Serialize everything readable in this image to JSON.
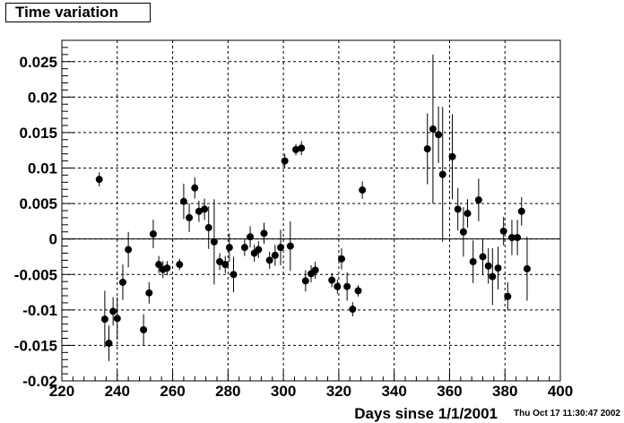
{
  "chart_data": {
    "type": "scatter",
    "title": "Time variation",
    "xlabel": "Days sinse 1/1/2001",
    "ylabel": "",
    "xlim": [
      220,
      400
    ],
    "ylim": [
      -0.02,
      0.028
    ],
    "xticks": [
      220,
      240,
      260,
      280,
      300,
      320,
      340,
      360,
      380,
      400
    ],
    "xtick_labels": [
      "220",
      "240",
      "260",
      "280",
      "300",
      "320",
      "340",
      "360",
      "380",
      "400"
    ],
    "yticks": [
      -0.02,
      -0.015,
      -0.01,
      -0.005,
      0,
      0.005,
      0.01,
      0.015,
      0.02,
      0.025
    ],
    "ytick_labels": [
      "-0.02",
      "-0.015",
      "-0.01",
      "-0.005",
      "0",
      "0.005",
      "0.01",
      "0.015",
      "0.02",
      "0.025"
    ],
    "grid": true,
    "reference_line_y": 0,
    "series": [
      {
        "points": [
          {
            "x": 233.5,
            "y": 0.0084,
            "err": 0.001
          },
          {
            "x": 235.5,
            "y": -0.0113,
            "err": 0.004
          },
          {
            "x": 237,
            "y": -0.0147,
            "err": 0.0025
          },
          {
            "x": 238.5,
            "y": -0.0102,
            "err": 0.002
          },
          {
            "x": 240,
            "y": -0.0112,
            "err": 0.003
          },
          {
            "x": 242,
            "y": -0.0061,
            "err": 0.0025
          },
          {
            "x": 244,
            "y": -0.0015,
            "err": 0.0025
          },
          {
            "x": 249.5,
            "y": -0.0128,
            "err": 0.0022
          },
          {
            "x": 251.5,
            "y": -0.0076,
            "err": 0.0015
          },
          {
            "x": 253,
            "y": 0.0007,
            "err": 0.002
          },
          {
            "x": 255,
            "y": -0.0036,
            "err": 0.0012
          },
          {
            "x": 256.5,
            "y": -0.0043,
            "err": 0.0012
          },
          {
            "x": 258,
            "y": -0.0041,
            "err": 0.001
          },
          {
            "x": 262.5,
            "y": -0.0036,
            "err": 0.0008
          },
          {
            "x": 264,
            "y": 0.0053,
            "err": 0.0025
          },
          {
            "x": 266,
            "y": 0.003,
            "err": 0.002
          },
          {
            "x": 268,
            "y": 0.0072,
            "err": 0.0015
          },
          {
            "x": 269.5,
            "y": 0.0039,
            "err": 0.0015
          },
          {
            "x": 271.5,
            "y": 0.0042,
            "err": 0.0015
          },
          {
            "x": 273,
            "y": 0.0016,
            "err": 0.003
          },
          {
            "x": 275,
            "y": -0.0004,
            "err": 0.006
          },
          {
            "x": 277,
            "y": -0.0032,
            "err": 0.0012
          },
          {
            "x": 279,
            "y": -0.0036,
            "err": 0.0012
          },
          {
            "x": 280.5,
            "y": -0.0012,
            "err": 0.002
          },
          {
            "x": 282,
            "y": -0.005,
            "err": 0.0025
          },
          {
            "x": 286,
            "y": -0.0012,
            "err": 0.0012
          },
          {
            "x": 288,
            "y": 0.0003,
            "err": 0.0015
          },
          {
            "x": 289.5,
            "y": -0.002,
            "err": 0.0012
          },
          {
            "x": 291,
            "y": -0.0015,
            "err": 0.0012
          },
          {
            "x": 293,
            "y": 0.0008,
            "err": 0.0015
          },
          {
            "x": 295,
            "y": -0.003,
            "err": 0.0012
          },
          {
            "x": 297,
            "y": -0.0023,
            "err": 0.0015
          },
          {
            "x": 299,
            "y": -0.0012,
            "err": 0.0025
          },
          {
            "x": 300.5,
            "y": 0.011,
            "err": 0.001
          },
          {
            "x": 302.5,
            "y": -0.001,
            "err": 0.0035
          },
          {
            "x": 304.5,
            "y": 0.0126,
            "err": 0.0008
          },
          {
            "x": 306.5,
            "y": 0.0128,
            "err": 0.001
          },
          {
            "x": 308,
            "y": -0.0059,
            "err": 0.0015
          },
          {
            "x": 310,
            "y": -0.0049,
            "err": 0.0012
          },
          {
            "x": 311.5,
            "y": -0.0044,
            "err": 0.0012
          },
          {
            "x": 317.5,
            "y": -0.0058,
            "err": 0.001
          },
          {
            "x": 319.5,
            "y": -0.0067,
            "err": 0.001
          },
          {
            "x": 321,
            "y": -0.0028,
            "err": 0.0015
          },
          {
            "x": 323,
            "y": -0.0067,
            "err": 0.002
          },
          {
            "x": 325,
            "y": -0.0099,
            "err": 0.001
          },
          {
            "x": 327,
            "y": -0.0073,
            "err": 0.0008
          },
          {
            "x": 328.5,
            "y": 0.0069,
            "err": 0.0012
          },
          {
            "x": 352,
            "y": 0.0127,
            "err": 0.005
          },
          {
            "x": 354,
            "y": 0.0155,
            "err": 0.0105
          },
          {
            "x": 356,
            "y": 0.0147,
            "err": 0.004
          },
          {
            "x": 357.5,
            "y": 0.0091,
            "err": 0.0095
          },
          {
            "x": 361,
            "y": 0.0116,
            "err": 0.006
          },
          {
            "x": 363,
            "y": 0.0042,
            "err": 0.003
          },
          {
            "x": 365,
            "y": 0.001,
            "err": 0.0035
          },
          {
            "x": 366.5,
            "y": 0.0036,
            "err": 0.002
          },
          {
            "x": 368.5,
            "y": -0.0032,
            "err": 0.003
          },
          {
            "x": 370.5,
            "y": 0.0055,
            "err": 0.003
          },
          {
            "x": 372,
            "y": -0.0025,
            "err": 0.0025
          },
          {
            "x": 374,
            "y": -0.0038,
            "err": 0.0025
          },
          {
            "x": 375.5,
            "y": -0.0053,
            "err": 0.004
          },
          {
            "x": 377.5,
            "y": -0.0041,
            "err": 0.003
          },
          {
            "x": 379.5,
            "y": 0.0011,
            "err": 0.002
          },
          {
            "x": 381,
            "y": -0.0081,
            "err": 0.002
          },
          {
            "x": 382.5,
            "y": 0.0002,
            "err": 0.0025
          },
          {
            "x": 384.5,
            "y": 0.0002,
            "err": 0.0025
          },
          {
            "x": 386,
            "y": 0.0039,
            "err": 0.002
          },
          {
            "x": 388,
            "y": -0.0042,
            "err": 0.0045
          }
        ]
      }
    ]
  },
  "footer": {
    "timestamp": "Thu Oct 17 11:30:47 2002"
  }
}
